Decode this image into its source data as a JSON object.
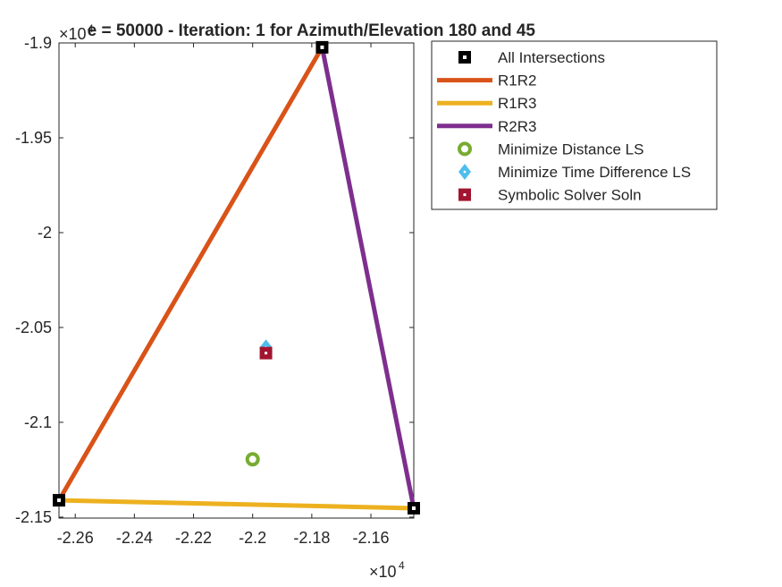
{
  "chart_data": {
    "type": "scatter",
    "title": "e = 50000 - Iteration: 1 for Azimuth/Elevation 180 and 45",
    "x_multiplier_label": "×10",
    "x_multiplier_exp": "4",
    "y_multiplier_label": "×10",
    "y_multiplier_exp": "4",
    "xlim": [
      -2.2655,
      -2.1455
    ],
    "ylim": [
      -2.1505,
      -1.9
    ],
    "x_ticks": [
      -2.26,
      -2.24,
      -2.22,
      -2.2,
      -2.18,
      -2.16
    ],
    "x_tick_labels": [
      "-2.26",
      "-2.24",
      "-2.22",
      "-2.2",
      "-2.18",
      "-2.16"
    ],
    "y_ticks": [
      -1.9,
      -1.95,
      -2.0,
      -2.05,
      -2.1,
      -2.15
    ],
    "y_tick_labels": [
      "-1.9",
      "-1.95",
      "-2",
      "-2.05",
      "-2.1",
      "-2.15"
    ],
    "grid": false,
    "legend_position": "top-right outside",
    "series": [
      {
        "name": "All Intersections",
        "kind": "marker",
        "marker": "square",
        "color": "#000000",
        "points": [
          [
            -2.1765,
            -1.9023
          ],
          [
            -2.2655,
            -2.1411
          ],
          [
            -2.1455,
            -2.1453
          ]
        ]
      },
      {
        "name": "R1R2",
        "kind": "line",
        "color": "#D95319",
        "points": [
          [
            -2.2655,
            -2.1411
          ],
          [
            -2.1765,
            -1.9023
          ]
        ]
      },
      {
        "name": "R1R3",
        "kind": "line",
        "color": "#EDB120",
        "points": [
          [
            -2.2655,
            -2.1411
          ],
          [
            -2.1455,
            -2.1453
          ]
        ]
      },
      {
        "name": "R2R3",
        "kind": "line",
        "color": "#7E2F8E",
        "points": [
          [
            -2.1765,
            -1.9023
          ],
          [
            -2.1455,
            -2.1453
          ]
        ]
      },
      {
        "name": "Minimize Distance LS",
        "kind": "marker",
        "marker": "circle",
        "color": "#77AC30",
        "points": [
          [
            -2.2,
            -2.1195
          ]
        ]
      },
      {
        "name": "Minimize Time Difference LS",
        "kind": "marker",
        "marker": "diamond",
        "color": "#4DBEEE",
        "points": [
          [
            -2.1955,
            -2.0605
          ]
        ]
      },
      {
        "name": "Symbolic Solver Soln",
        "kind": "marker",
        "marker": "square",
        "color": "#A2142F",
        "points": [
          [
            -2.1955,
            -2.0635
          ]
        ]
      }
    ]
  }
}
